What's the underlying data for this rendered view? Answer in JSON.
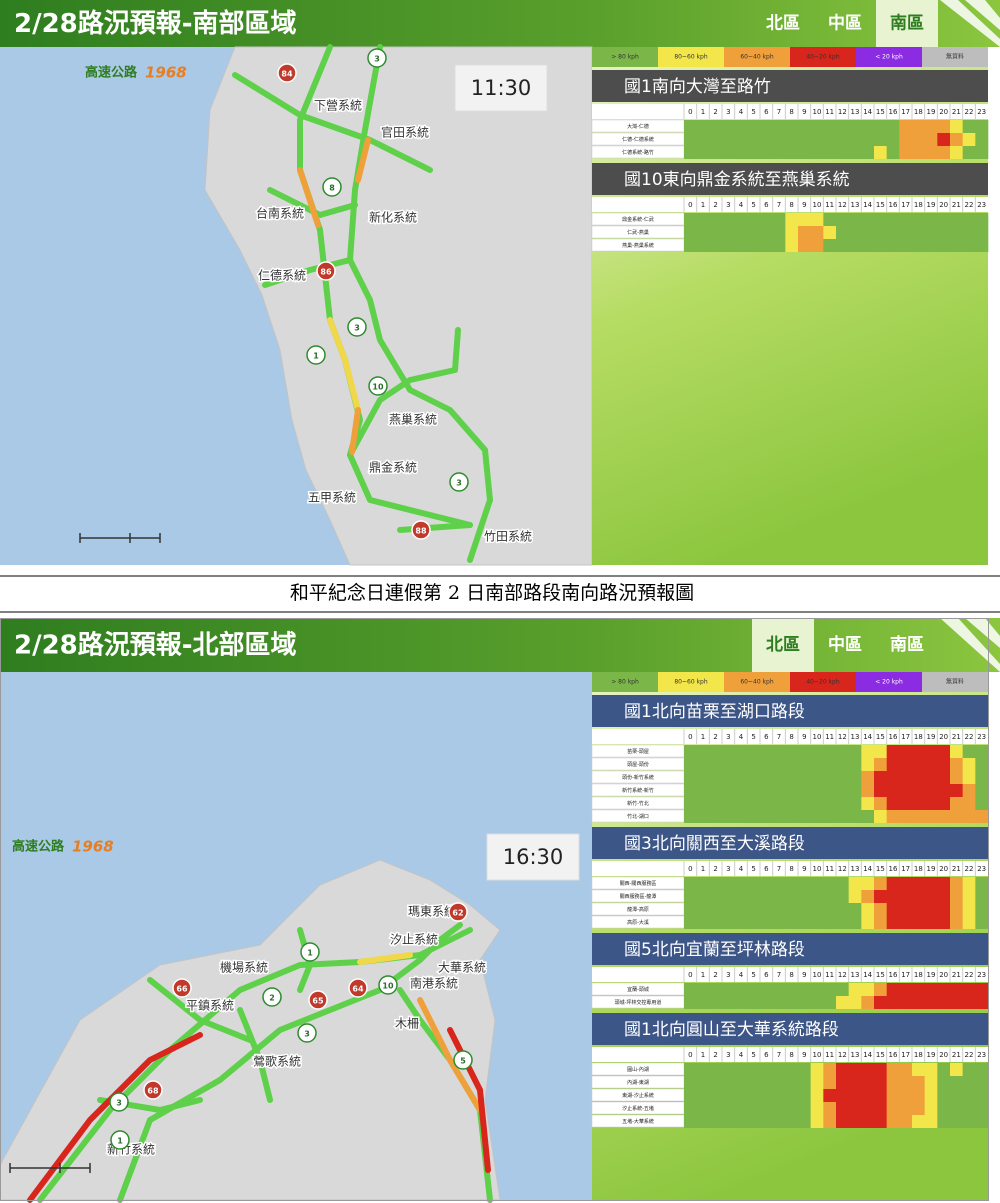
{
  "hours": [
    0,
    1,
    2,
    3,
    4,
    5,
    6,
    7,
    8,
    9,
    10,
    11,
    12,
    13,
    14,
    15,
    16,
    17,
    18,
    19,
    20,
    21,
    22,
    23
  ],
  "legend": [
    {
      "label": "> 80 kph",
      "color": "#7ab648"
    },
    {
      "label": "80~60 kph",
      "color": "#f2e64b"
    },
    {
      "label": "60~40 kph",
      "color": "#f0a03a"
    },
    {
      "label": "40~20 kph",
      "color": "#d8261c"
    },
    {
      "label": "< 20 kph",
      "color": "#8b2be2"
    },
    {
      "label": "無資料",
      "color": "#bdbdbd"
    }
  ],
  "caption": "和平紀念日連假第 2 日南部路段南向路況預報圖",
  "panels": [
    {
      "title": "2/28路況預報-南部區域",
      "tabs": [
        "北區",
        "中區",
        "南區"
      ],
      "active_tab": 2,
      "time": "11:30",
      "logo": "高速公路",
      "logo_year": "1968",
      "section_color": "#4d4d4d",
      "map_labels": [
        "下營系統",
        "官田系統",
        "台南系統",
        "新化系統",
        "仁德系統",
        "燕巢系統",
        "鼎金系統",
        "五甲系統",
        "竹田系統"
      ],
      "shields": [
        {
          "label": "84",
          "color": "#c0392b"
        },
        {
          "label": "3",
          "color": "#ffffff"
        },
        {
          "label": "8",
          "color": "#ffffff"
        },
        {
          "label": "86",
          "color": "#c0392b"
        },
        {
          "label": "3",
          "color": "#ffffff"
        },
        {
          "label": "1",
          "color": "#ffffff"
        },
        {
          "label": "10",
          "color": "#ffffff"
        },
        {
          "label": "3",
          "color": "#ffffff"
        },
        {
          "label": "88",
          "color": "#c0392b"
        }
      ],
      "sections": [
        {
          "title": "國1南向大灣至路竹",
          "segments": [
            "大灣-仁德",
            "仁德-仁德系統",
            "仁德系統-路竹"
          ],
          "levels": [
            [
              0,
              0,
              0,
              0,
              0,
              0,
              0,
              0,
              0,
              0,
              0,
              0,
              0,
              0,
              0,
              0,
              0,
              2,
              2,
              2,
              2,
              1,
              0,
              0
            ],
            [
              0,
              0,
              0,
              0,
              0,
              0,
              0,
              0,
              0,
              0,
              0,
              0,
              0,
              0,
              0,
              0,
              0,
              2,
              2,
              2,
              3,
              2,
              1,
              0
            ],
            [
              0,
              0,
              0,
              0,
              0,
              0,
              0,
              0,
              0,
              0,
              0,
              0,
              0,
              0,
              0,
              1,
              0,
              2,
              2,
              2,
              2,
              1,
              0,
              0
            ]
          ]
        },
        {
          "title": "國10東向鼎金系統至燕巢系統",
          "segments": [
            "鼎金系統-仁武",
            "仁武-燕巢",
            "燕巢-燕巢系統"
          ],
          "levels": [
            [
              0,
              0,
              0,
              0,
              0,
              0,
              0,
              0,
              1,
              1,
              1,
              0,
              0,
              0,
              0,
              0,
              0,
              0,
              0,
              0,
              0,
              0,
              0,
              0
            ],
            [
              0,
              0,
              0,
              0,
              0,
              0,
              0,
              0,
              1,
              2,
              2,
              1,
              0,
              0,
              0,
              0,
              0,
              0,
              0,
              0,
              0,
              0,
              0,
              0
            ],
            [
              0,
              0,
              0,
              0,
              0,
              0,
              0,
              0,
              1,
              2,
              2,
              0,
              0,
              0,
              0,
              0,
              0,
              0,
              0,
              0,
              0,
              0,
              0,
              0
            ]
          ]
        }
      ]
    },
    {
      "title": "2/28路況預報-北部區域",
      "tabs": [
        "北區",
        "中區",
        "南區"
      ],
      "active_tab": 0,
      "time": "16:30",
      "logo": "高速公路",
      "logo_year": "1968",
      "section_color": "#3d5688",
      "map_labels": [
        "機場系統",
        "平鎮系統",
        "汐止系統",
        "瑪東系統",
        "南港系統",
        "大華系統",
        "木柵",
        "鶯歌系統",
        "新竹系統"
      ],
      "shields": [
        {
          "label": "62",
          "color": "#c0392b"
        },
        {
          "label": "1",
          "color": "#ffffff"
        },
        {
          "label": "2",
          "color": "#ffffff"
        },
        {
          "label": "65",
          "color": "#c0392b"
        },
        {
          "label": "64",
          "color": "#c0392b"
        },
        {
          "label": "10",
          "color": "#ffffff"
        },
        {
          "label": "3",
          "color": "#ffffff"
        },
        {
          "label": "5",
          "color": "#ffffff"
        },
        {
          "label": "66",
          "color": "#c0392b"
        },
        {
          "label": "68",
          "color": "#c0392b"
        },
        {
          "label": "3",
          "color": "#ffffff"
        },
        {
          "label": "1",
          "color": "#ffffff"
        }
      ],
      "sections": [
        {
          "title": "國1北向苗栗至湖口路段",
          "segments": [
            "苗栗-頭屋",
            "頭屋-頭份",
            "頭份-新竹系統",
            "新竹系統-新竹",
            "新竹-竹北",
            "竹北-湖口"
          ],
          "levels": [
            [
              0,
              0,
              0,
              0,
              0,
              0,
              0,
              0,
              0,
              0,
              0,
              0,
              0,
              0,
              1,
              1,
              3,
              3,
              3,
              3,
              3,
              1,
              0,
              0
            ],
            [
              0,
              0,
              0,
              0,
              0,
              0,
              0,
              0,
              0,
              0,
              0,
              0,
              0,
              0,
              1,
              2,
              3,
              3,
              3,
              3,
              3,
              2,
              1,
              0
            ],
            [
              0,
              0,
              0,
              0,
              0,
              0,
              0,
              0,
              0,
              0,
              0,
              0,
              0,
              0,
              2,
              3,
              3,
              3,
              3,
              3,
              3,
              2,
              1,
              0
            ],
            [
              0,
              0,
              0,
              0,
              0,
              0,
              0,
              0,
              0,
              0,
              0,
              0,
              0,
              0,
              2,
              3,
              3,
              3,
              3,
              3,
              3,
              3,
              2,
              0
            ],
            [
              0,
              0,
              0,
              0,
              0,
              0,
              0,
              0,
              0,
              0,
              0,
              0,
              0,
              0,
              1,
              2,
              3,
              3,
              3,
              3,
              3,
              2,
              2,
              0
            ],
            [
              0,
              0,
              0,
              0,
              0,
              0,
              0,
              0,
              0,
              0,
              0,
              0,
              0,
              0,
              0,
              1,
              2,
              2,
              2,
              2,
              2,
              2,
              2,
              2
            ]
          ]
        },
        {
          "title": "國3北向關西至大溪路段",
          "segments": [
            "關西-關西服務區",
            "關西服務區-龍潭",
            "龍潭-高原",
            "高原-大溪"
          ],
          "levels": [
            [
              0,
              0,
              0,
              0,
              0,
              0,
              0,
              0,
              0,
              0,
              0,
              0,
              0,
              1,
              1,
              2,
              3,
              3,
              3,
              3,
              3,
              2,
              1,
              0
            ],
            [
              0,
              0,
              0,
              0,
              0,
              0,
              0,
              0,
              0,
              0,
              0,
              0,
              0,
              1,
              2,
              3,
              3,
              3,
              3,
              3,
              3,
              2,
              1,
              0
            ],
            [
              0,
              0,
              0,
              0,
              0,
              0,
              0,
              0,
              0,
              0,
              0,
              0,
              0,
              0,
              1,
              2,
              3,
              3,
              3,
              3,
              3,
              2,
              1,
              0
            ],
            [
              0,
              0,
              0,
              0,
              0,
              0,
              0,
              0,
              0,
              0,
              0,
              0,
              0,
              0,
              1,
              2,
              3,
              3,
              3,
              3,
              3,
              2,
              1,
              0
            ]
          ]
        },
        {
          "title": "國5北向宜蘭至坪林路段",
          "segments": [
            "宜蘭-頭城",
            "頭城-坪林交控專用道"
          ],
          "levels": [
            [
              0,
              0,
              0,
              0,
              0,
              0,
              0,
              0,
              0,
              0,
              0,
              0,
              0,
              1,
              1,
              2,
              3,
              3,
              3,
              3,
              3,
              3,
              3,
              3
            ],
            [
              0,
              0,
              0,
              0,
              0,
              0,
              0,
              0,
              0,
              0,
              0,
              0,
              1,
              1,
              2,
              3,
              3,
              3,
              3,
              3,
              3,
              3,
              3,
              3
            ]
          ]
        },
        {
          "title": "國1北向圓山至大華系統路段",
          "segments": [
            "圓山-內湖",
            "內湖-東湖",
            "東湖-汐止系統",
            "汐止系統-五堵",
            "五堵-大華系統"
          ],
          "levels": [
            [
              0,
              0,
              0,
              0,
              0,
              0,
              0,
              0,
              0,
              0,
              1,
              2,
              3,
              3,
              3,
              3,
              2,
              2,
              1,
              1,
              0,
              1,
              0,
              0
            ],
            [
              0,
              0,
              0,
              0,
              0,
              0,
              0,
              0,
              0,
              0,
              1,
              2,
              3,
              3,
              3,
              3,
              2,
              2,
              2,
              1,
              0,
              0,
              0,
              0
            ],
            [
              0,
              0,
              0,
              0,
              0,
              0,
              0,
              0,
              0,
              0,
              1,
              3,
              3,
              3,
              3,
              3,
              2,
              2,
              2,
              1,
              0,
              0,
              0,
              0
            ],
            [
              0,
              0,
              0,
              0,
              0,
              0,
              0,
              0,
              0,
              0,
              1,
              2,
              3,
              3,
              3,
              3,
              2,
              2,
              2,
              1,
              0,
              0,
              0,
              0
            ],
            [
              0,
              0,
              0,
              0,
              0,
              0,
              0,
              0,
              0,
              0,
              1,
              2,
              3,
              3,
              3,
              3,
              2,
              2,
              1,
              1,
              0,
              0,
              0,
              0
            ]
          ]
        }
      ]
    }
  ]
}
